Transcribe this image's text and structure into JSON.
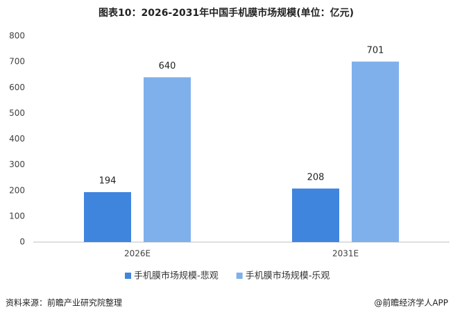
{
  "chart_data": {
    "type": "bar",
    "title": "图表10：2026-2031年中国手机膜市场规模(单位：亿元)",
    "categories": [
      "2026E",
      "2031E"
    ],
    "series": [
      {
        "name": "手机膜市场规模-悲观",
        "color": "#3f85de",
        "values": [
          194,
          208
        ]
      },
      {
        "name": "手机膜市场规模-乐观",
        "color": "#7fb0ec",
        "values": [
          640,
          701
        ]
      }
    ],
    "ylim": [
      0,
      800
    ],
    "yticks": [
      0,
      100,
      200,
      300,
      400,
      500,
      600,
      700,
      800
    ],
    "grid": false,
    "legend": "bottom",
    "source": "资料来源：前瞻产业研究院整理",
    "credit": "@前瞻经济学人APP"
  }
}
